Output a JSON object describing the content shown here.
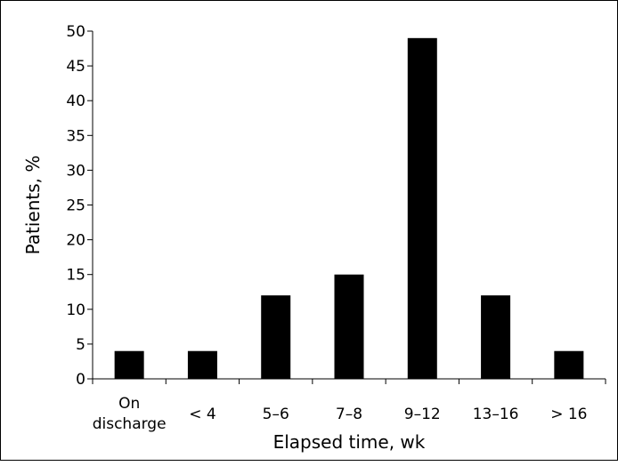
{
  "chart_data": {
    "type": "bar",
    "title": "",
    "xlabel": "Elapsed time, wk",
    "ylabel": "Patients, %",
    "categories": [
      [
        "On",
        "discharge"
      ],
      [
        "< 4"
      ],
      [
        "5–6"
      ],
      [
        "7–8"
      ],
      [
        "9–12"
      ],
      [
        "13–16"
      ],
      [
        "> 16"
      ]
    ],
    "values": [
      4,
      4,
      12,
      15,
      49,
      12,
      4
    ],
    "ylim": [
      0,
      50
    ],
    "yticks": [
      0,
      5,
      10,
      15,
      20,
      25,
      30,
      35,
      40,
      45,
      50
    ],
    "grid": false,
    "legend": "none",
    "bar_color": "#000000"
  }
}
